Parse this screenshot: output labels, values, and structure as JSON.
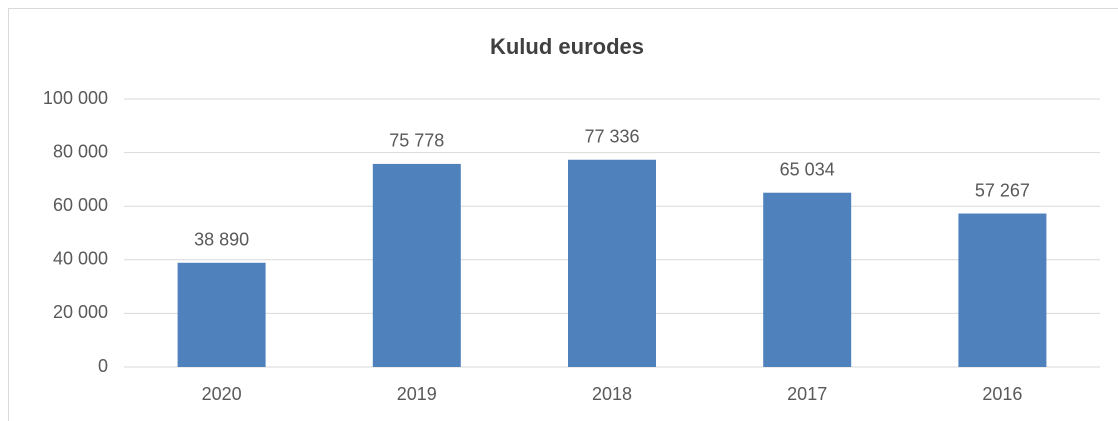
{
  "chart_data": {
    "type": "bar",
    "title": "Kulud eurodes",
    "categories": [
      "2020",
      "2019",
      "2018",
      "2017",
      "2016"
    ],
    "values": [
      38890,
      75778,
      77336,
      65034,
      57267
    ],
    "value_labels": [
      "38 890",
      "75 778",
      "77 336",
      "65 034",
      "57 267"
    ],
    "color": "#4f81bd",
    "ylim": [
      0,
      100000
    ],
    "yticks": [
      0,
      {
        "value": 20000,
        "label": "20 000"
      },
      {
        "value": 40000,
        "label": "40 000"
      },
      {
        "value": 60000,
        "label": "60 000"
      },
      {
        "value": 80000,
        "label": "80 000"
      },
      {
        "value": 100000,
        "label": "100 000"
      }
    ],
    "grid": true
  }
}
